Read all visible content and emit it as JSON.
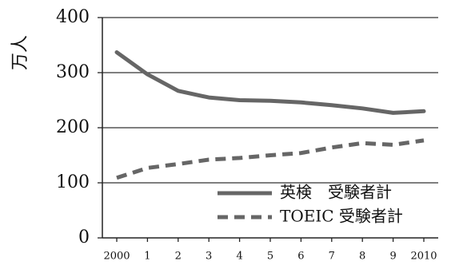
{
  "chart_data": {
    "type": "line",
    "title": "",
    "ylabel": "万人",
    "xlabel": "",
    "x": [
      "2000",
      "1",
      "2",
      "3",
      "4",
      "5",
      "6",
      "7",
      "8",
      "9",
      "2010"
    ],
    "ylim": [
      0,
      400
    ],
    "yticks": [
      0,
      100,
      200,
      300,
      400
    ],
    "grid": "horizontal",
    "legend_position": "bottom-right",
    "series": [
      {
        "name": "英検　受験者計",
        "style": "solid",
        "color": "#666666",
        "values": [
          337,
          297,
          267,
          255,
          250,
          249,
          246,
          241,
          235,
          227,
          230
        ]
      },
      {
        "name": "TOEIC 受験者計",
        "style": "dashed",
        "color": "#666666",
        "values": [
          109,
          127,
          134,
          142,
          145,
          150,
          154,
          164,
          172,
          169,
          177
        ]
      }
    ]
  }
}
